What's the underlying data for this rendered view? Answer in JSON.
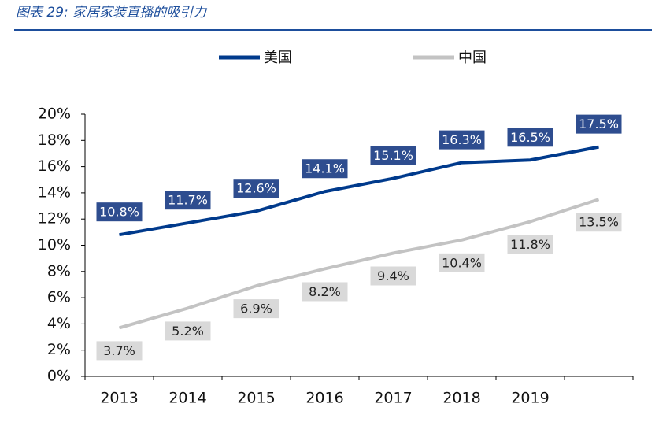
{
  "chart_data": {
    "type": "line",
    "title": "图表 29:  家居家装直播的吸引力",
    "categories": [
      "2013",
      "2014",
      "2015",
      "2016",
      "2017",
      "2018",
      "2019",
      null
    ],
    "series": [
      {
        "name": "美国",
        "color": "#003a8c",
        "label_color": "#2e4d8f",
        "label_text_color": "#ffffff",
        "values": [
          10.8,
          11.7,
          12.6,
          14.1,
          15.1,
          16.3,
          16.5,
          17.5
        ],
        "value_labels": [
          "10.8%",
          "11.7%",
          "12.6%",
          "14.1%",
          "15.1%",
          "16.3%",
          "16.5%",
          "17.5%"
        ]
      },
      {
        "name": "中国",
        "color": "#c3c3c3",
        "label_color": "#d9d9d9",
        "label_text_color": "#222222",
        "values": [
          3.7,
          5.2,
          6.9,
          8.2,
          9.4,
          10.4,
          11.8,
          13.5
        ],
        "value_labels": [
          "3.7%",
          "5.2%",
          "6.9%",
          "8.2%",
          "9.4%",
          "10.4%",
          "11.8%",
          "13.5%"
        ]
      }
    ],
    "ylim": [
      0,
      20
    ],
    "yticks": [
      {
        "value": 0,
        "label": "0%"
      },
      {
        "value": 2,
        "label": "2%"
      },
      {
        "value": 4,
        "label": "4%"
      },
      {
        "value": 6,
        "label": "6%"
      },
      {
        "value": 8,
        "label": "8%"
      },
      {
        "value": 10,
        "label": "10%"
      },
      {
        "value": 12,
        "label": "12%"
      },
      {
        "value": 14,
        "label": "14%"
      },
      {
        "value": 16,
        "label": "16%"
      },
      {
        "value": 18,
        "label": "18%"
      },
      {
        "value": 20,
        "label": "20%"
      }
    ],
    "legend": "top",
    "grid": false
  }
}
